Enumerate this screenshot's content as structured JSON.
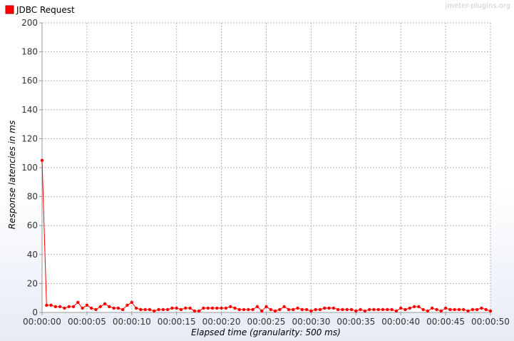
{
  "watermark": "jmeter-plugins.org",
  "chart_data": {
    "type": "line",
    "title": "",
    "xlabel": "Elapsed time (granularity: 500 ms)",
    "ylabel": "Response latencies in ms",
    "xlim": [
      0,
      50
    ],
    "ylim": [
      0,
      200
    ],
    "x_unit": "seconds",
    "x_ticks": [
      "00:00:00",
      "00:00:05",
      "00:00:10",
      "00:00:15",
      "00:00:20",
      "00:00:25",
      "00:00:30",
      "00:00:35",
      "00:00:40",
      "00:00:45",
      "00:00:50"
    ],
    "y_ticks": [
      "0",
      "20",
      "40",
      "60",
      "80",
      "100",
      "120",
      "140",
      "160",
      "180",
      "200"
    ],
    "grid": true,
    "legend_position": "top-left",
    "series": [
      {
        "name": "JDBC Request",
        "color": "#ff0000",
        "x": [
          0,
          0.5,
          1,
          1.5,
          2,
          2.5,
          3,
          3.5,
          4,
          4.5,
          5,
          5.5,
          6,
          6.5,
          7,
          7.5,
          8,
          8.5,
          9,
          9.5,
          10,
          10.5,
          11,
          11.5,
          12,
          12.5,
          13,
          13.5,
          14,
          14.5,
          15,
          15.5,
          16,
          16.5,
          17,
          17.5,
          18,
          18.5,
          19,
          19.5,
          20,
          20.5,
          21,
          21.5,
          22,
          22.5,
          23,
          23.5,
          24,
          24.5,
          25,
          25.5,
          26,
          26.5,
          27,
          27.5,
          28,
          28.5,
          29,
          29.5,
          30,
          30.5,
          31,
          31.5,
          32,
          32.5,
          33,
          33.5,
          34,
          34.5,
          35,
          35.5,
          36,
          36.5,
          37,
          37.5,
          38,
          38.5,
          39,
          39.5,
          40,
          40.5,
          41,
          41.5,
          42,
          42.5,
          43,
          43.5,
          44,
          44.5,
          45,
          45.5,
          46,
          46.5,
          47,
          47.5,
          48,
          48.5,
          49,
          49.5,
          50
        ],
        "values": [
          105,
          5,
          5,
          4,
          4,
          3,
          4,
          4,
          7,
          3,
          5,
          3,
          2,
          4,
          6,
          4,
          3,
          3,
          2,
          5,
          7,
          3,
          2,
          2,
          2,
          1,
          2,
          2,
          2,
          3,
          3,
          2,
          3,
          3,
          1,
          1,
          3,
          3,
          3,
          3,
          3,
          3,
          4,
          3,
          2,
          2,
          2,
          2,
          4,
          1,
          4,
          2,
          1,
          2,
          4,
          2,
          2,
          3,
          2,
          2,
          1,
          2,
          2,
          3,
          3,
          3,
          2,
          2,
          2,
          2,
          1,
          2,
          1,
          2,
          2,
          2,
          2,
          2,
          2,
          1,
          3,
          2,
          3,
          4,
          4,
          2,
          1,
          3,
          2,
          1,
          3,
          2,
          2,
          2,
          2,
          1,
          2,
          2,
          3,
          2,
          1
        ]
      }
    ]
  }
}
